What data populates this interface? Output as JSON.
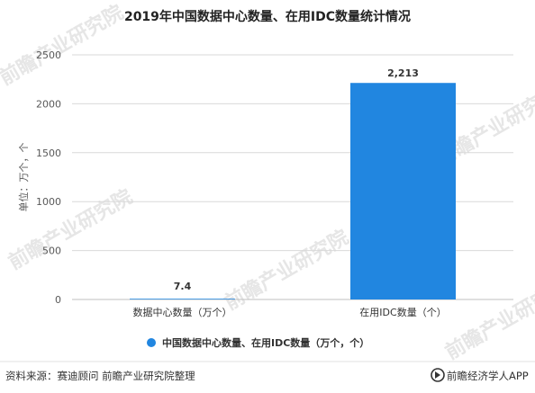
{
  "chart_data": {
    "type": "bar",
    "title": "2019年中国数据中心数量、在用IDC数量统计情况",
    "ylabel": "单位：万个，个",
    "categories": [
      "数据中心数量（万个）",
      "在用IDC数量（个）"
    ],
    "series": [
      {
        "name": "中国数据中心数量、在用IDC数量（万个，个）",
        "values": [
          7.4,
          2213
        ],
        "value_labels": [
          "7.4",
          "2,213"
        ]
      }
    ],
    "ylim": [
      0,
      2500
    ],
    "yticks": [
      0,
      500,
      1000,
      1500,
      2000,
      2500
    ],
    "grid": true,
    "legend": "bottom-center"
  },
  "colors": {
    "bar": "#2186e0",
    "grid": "#d9d9d9",
    "axis": "#bfbfbf"
  },
  "footer": {
    "source": "资料来源：赛迪顾问 前瞻产业研究院整理",
    "brand": "前瞻经济学人APP",
    "brand_icon": "qianzhan-logo-icon"
  },
  "watermark": {
    "text": "前瞻产业研究院"
  }
}
